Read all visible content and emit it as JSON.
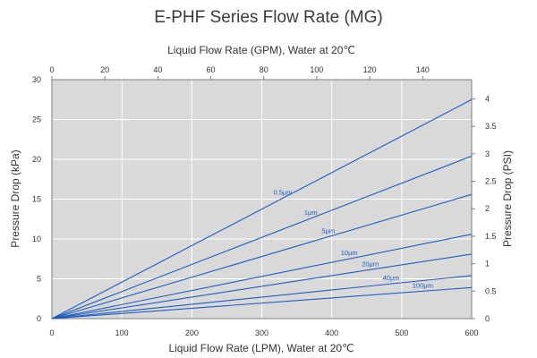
{
  "chart_data": {
    "type": "line",
    "title": "E-PHF Series Flow Rate (MG)",
    "xlabel": "Liquid Flow Rate (LPM), Water at 20℃",
    "x2label": "Liquid Flow Rate (GPM), Water at 20℃",
    "ylabel": "Pressure Drop (kPa)",
    "y2label": "Pressure Drop (PSI)",
    "xlim": [
      0,
      600
    ],
    "ylim": [
      0,
      30
    ],
    "x2lim": [
      0,
      158.5
    ],
    "y2lim": [
      0,
      4.35
    ],
    "x_ticks": [
      "0",
      "100",
      "200",
      "300",
      "400",
      "500",
      "600"
    ],
    "y_ticks": [
      "0",
      "5",
      "10",
      "15",
      "20",
      "25",
      "30"
    ],
    "x2_ticks": [
      {
        "value": 0,
        "label": "0"
      },
      {
        "value": 20,
        "label": "20"
      },
      {
        "value": 40,
        "label": "40"
      },
      {
        "value": 60,
        "label": "60"
      },
      {
        "value": 80,
        "label": "80"
      },
      {
        "value": 100,
        "label": "100"
      },
      {
        "value": 120,
        "label": "120"
      },
      {
        "value": 140,
        "label": "140"
      }
    ],
    "y2_ticks": [
      {
        "value": 0,
        "label": "0"
      },
      {
        "value": 0.5,
        "label": "0.5"
      },
      {
        "value": 1,
        "label": "1"
      },
      {
        "value": 1.5,
        "label": "1.5"
      },
      {
        "value": 2,
        "label": "2"
      },
      {
        "value": 2.5,
        "label": "2.5"
      },
      {
        "value": 3,
        "label": "3"
      },
      {
        "value": 3.5,
        "label": "3.5"
      },
      {
        "value": 4,
        "label": "4"
      }
    ],
    "grid": true,
    "colors": {
      "series": "#1f5bbf",
      "plot_bg": "#d9d9d9",
      "grid": "#ffffff",
      "axis": "#7f7f7f"
    },
    "series": [
      {
        "name": "0.5μm",
        "x": [
          0,
          600
        ],
        "y": [
          0,
          27.5
        ],
        "label_at": 330
      },
      {
        "name": "1μm",
        "x": [
          0,
          600
        ],
        "y": [
          0,
          20.4
        ],
        "label_at": 370
      },
      {
        "name": "5μm",
        "x": [
          0,
          600
        ],
        "y": [
          0,
          15.6
        ],
        "label_at": 395
      },
      {
        "name": "10μm",
        "x": [
          0,
          600
        ],
        "y": [
          0,
          10.6
        ],
        "label_at": 425
      },
      {
        "name": "20μm",
        "x": [
          0,
          600
        ],
        "y": [
          0,
          8.1
        ],
        "label_at": 455
      },
      {
        "name": "40μm",
        "x": [
          0,
          600
        ],
        "y": [
          0,
          5.4
        ],
        "label_at": 485
      },
      {
        "name": "100μm",
        "x": [
          0,
          600
        ],
        "y": [
          0,
          3.9
        ],
        "label_at": 530
      }
    ]
  }
}
